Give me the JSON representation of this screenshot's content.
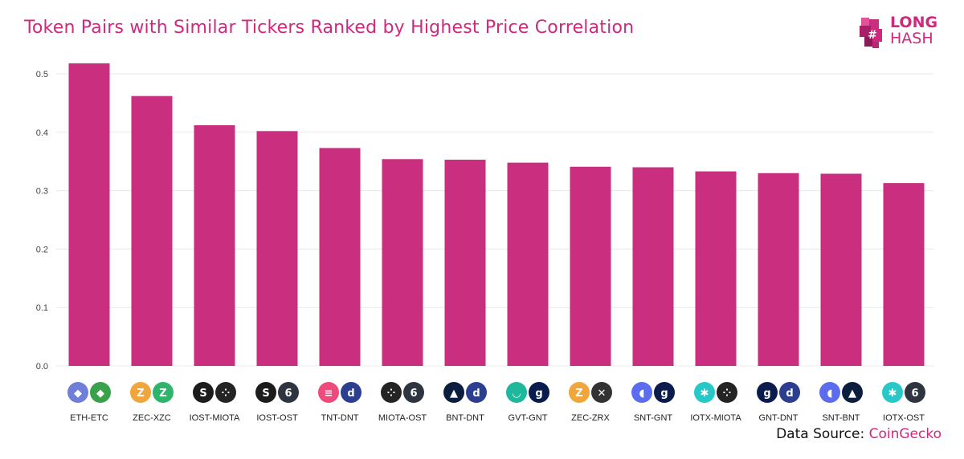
{
  "title": "Token Pairs with Similar Tickers Ranked by Highest Price Correlation",
  "logo": {
    "line1": "LONG",
    "line2": "HASH"
  },
  "source": {
    "prefix": "Data Source: ",
    "name": "CoinGecko"
  },
  "colors": {
    "bar": "#c92e7f",
    "accent": "#d0287f",
    "grid": "#e9e9e9",
    "tick": "#444444"
  },
  "chart_data": {
    "type": "bar",
    "categories": [
      "ETH-ETC",
      "ZEC-XZC",
      "IOST-MIOTA",
      "IOST-OST",
      "TNT-DNT",
      "MIOTA-OST",
      "BNT-DNT",
      "GVT-GNT",
      "ZEC-ZRX",
      "SNT-GNT",
      "IOTX-MIOTA",
      "GNT-DNT",
      "SNT-BNT",
      "IOTX-OST"
    ],
    "values": [
      0.518,
      0.462,
      0.412,
      0.402,
      0.373,
      0.354,
      0.353,
      0.348,
      0.341,
      0.34,
      0.333,
      0.33,
      0.329,
      0.313
    ],
    "yticks": [
      "0.0",
      "0.1",
      "0.2",
      "0.3",
      "0.4",
      "0.5"
    ],
    "ylim": [
      0,
      0.52
    ],
    "grid": true,
    "icons": [
      [
        {
          "name": "eth-icon",
          "bg": "#6f7fd9",
          "glyph": "◆"
        },
        {
          "name": "etc-icon",
          "bg": "#3aa14a",
          "glyph": "◆"
        }
      ],
      [
        {
          "name": "zec-icon",
          "bg": "#f0a63a",
          "glyph": "Z"
        },
        {
          "name": "xzc-icon",
          "bg": "#2fb56b",
          "glyph": "Z"
        }
      ],
      [
        {
          "name": "iost-icon",
          "bg": "#1c1c1c",
          "glyph": "S"
        },
        {
          "name": "miota-icon",
          "bg": "#242424",
          "glyph": "⁘"
        }
      ],
      [
        {
          "name": "iost-icon",
          "bg": "#1c1c1c",
          "glyph": "S"
        },
        {
          "name": "ost-icon",
          "bg": "#2e3440",
          "glyph": "6"
        }
      ],
      [
        {
          "name": "tnt-icon",
          "bg": "#ee4a7b",
          "glyph": "≡"
        },
        {
          "name": "dnt-icon",
          "bg": "#2c3e8f",
          "glyph": "d"
        }
      ],
      [
        {
          "name": "miota-icon",
          "bg": "#242424",
          "glyph": "⁘"
        },
        {
          "name": "ost-icon",
          "bg": "#2e3440",
          "glyph": "6"
        }
      ],
      [
        {
          "name": "bnt-icon",
          "bg": "#0b1e3f",
          "glyph": "▲"
        },
        {
          "name": "dnt-icon",
          "bg": "#2c3e8f",
          "glyph": "d"
        }
      ],
      [
        {
          "name": "gvt-icon",
          "bg": "#1fb89b",
          "glyph": "◡"
        },
        {
          "name": "gnt-icon",
          "bg": "#0a1c4d",
          "glyph": "g"
        }
      ],
      [
        {
          "name": "zec-icon",
          "bg": "#f0a63a",
          "glyph": "Z"
        },
        {
          "name": "zrx-icon",
          "bg": "#333333",
          "glyph": "✕"
        }
      ],
      [
        {
          "name": "snt-icon",
          "bg": "#5b6dee",
          "glyph": "◖"
        },
        {
          "name": "gnt-icon",
          "bg": "#0a1c4d",
          "glyph": "g"
        }
      ],
      [
        {
          "name": "iotx-icon",
          "bg": "#28c8c8",
          "glyph": "✱"
        },
        {
          "name": "miota-icon",
          "bg": "#242424",
          "glyph": "⁘"
        }
      ],
      [
        {
          "name": "gnt-icon",
          "bg": "#0a1c4d",
          "glyph": "g"
        },
        {
          "name": "dnt-icon",
          "bg": "#2c3e8f",
          "glyph": "d"
        }
      ],
      [
        {
          "name": "snt-icon",
          "bg": "#5b6dee",
          "glyph": "◖"
        },
        {
          "name": "bnt-icon",
          "bg": "#0b1e3f",
          "glyph": "▲"
        }
      ],
      [
        {
          "name": "iotx-icon",
          "bg": "#28c8c8",
          "glyph": "✱"
        },
        {
          "name": "ost-icon",
          "bg": "#2e3440",
          "glyph": "6"
        }
      ]
    ]
  }
}
